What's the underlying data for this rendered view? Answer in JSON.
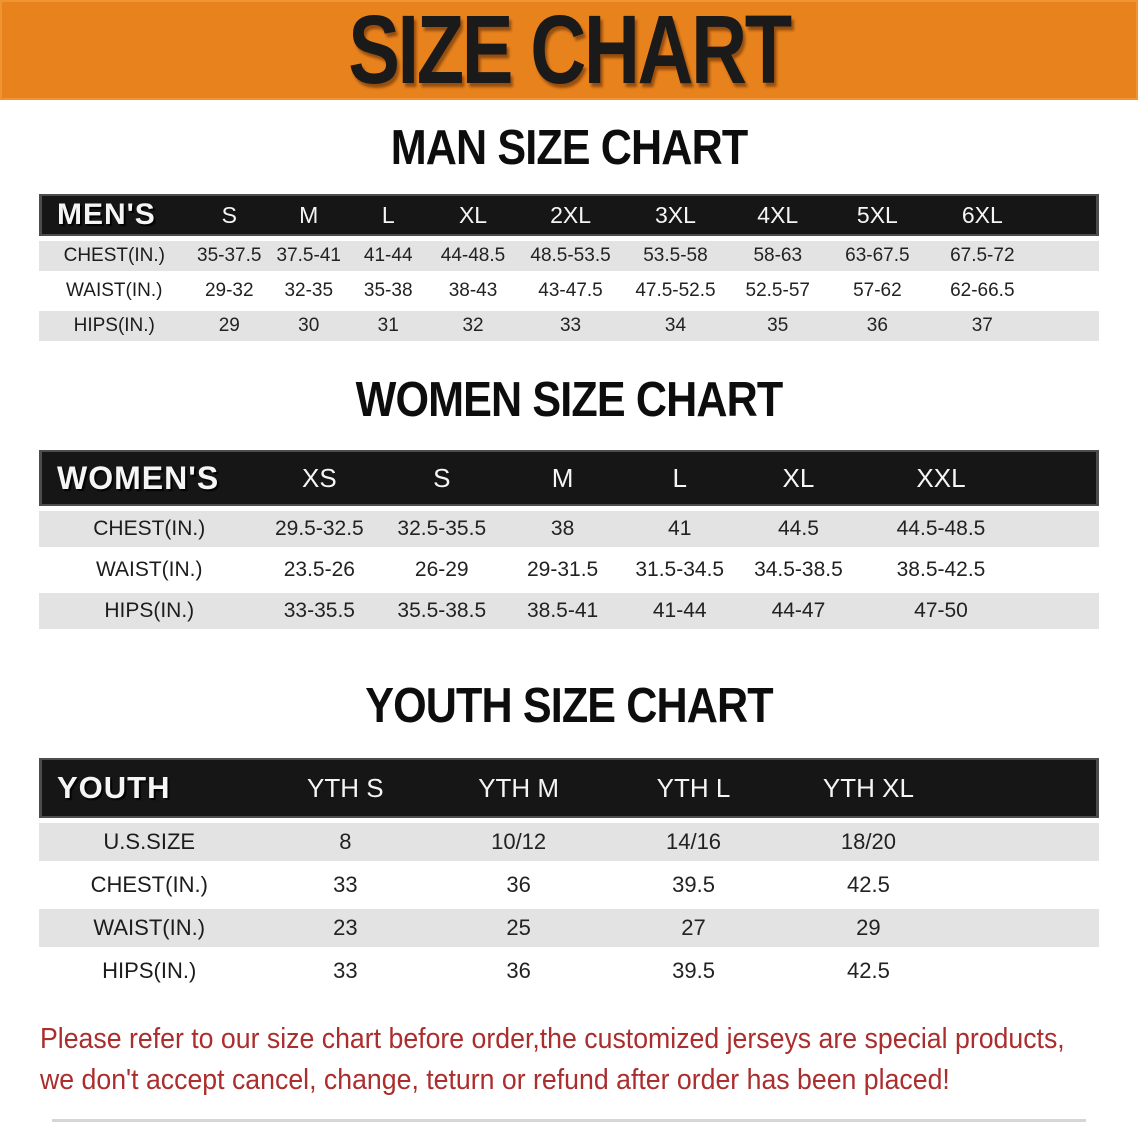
{
  "banner": {
    "title": "SIZE CHART"
  },
  "sections": [
    {
      "id": "men",
      "heading": "MAN SIZE CHART",
      "table": {
        "title": "MEN'S",
        "columns": [
          "S",
          "M",
          "L",
          "XL",
          "2XL",
          "3XL",
          "4XL",
          "5XL",
          "6XL"
        ],
        "rows": [
          {
            "label": "CHEST(IN.)",
            "values": [
              "35-37.5",
              "37.5-41",
              "41-44",
              "44-48.5",
              "48.5-53.5",
              "53.5-58",
              "58-63",
              "63-67.5",
              "67.5-72"
            ]
          },
          {
            "label": "WAIST(IN.)",
            "values": [
              "29-32",
              "32-35",
              "35-38",
              "38-43",
              "43-47.5",
              "47.5-52.5",
              "52.5-57",
              "57-62",
              "62-66.5"
            ]
          },
          {
            "label": "HIPS(IN.)",
            "values": [
              "29",
              "30",
              "31",
              "32",
              "33",
              "34",
              "35",
              "36",
              "37"
            ]
          }
        ]
      }
    },
    {
      "id": "women",
      "heading": "WOMEN SIZE CHART",
      "table": {
        "title": "WOMEN'S",
        "columns": [
          "XS",
          "S",
          "M",
          "L",
          "XL",
          "XXL"
        ],
        "rows": [
          {
            "label": "CHEST(IN.)",
            "values": [
              "29.5-32.5",
              "32.5-35.5",
              "38",
              "41",
              "44.5",
              "44.5-48.5"
            ]
          },
          {
            "label": "WAIST(IN.)",
            "values": [
              "23.5-26",
              "26-29",
              "29-31.5",
              "31.5-34.5",
              "34.5-38.5",
              "38.5-42.5"
            ]
          },
          {
            "label": "HIPS(IN.)",
            "values": [
              "33-35.5",
              "35.5-38.5",
              "38.5-41",
              "41-44",
              "44-47",
              "47-50"
            ]
          }
        ]
      }
    },
    {
      "id": "youth",
      "heading": "YOUTH SIZE CHART",
      "table": {
        "title": "YOUTH",
        "columns": [
          "YTH S",
          "YTH M",
          "YTH L",
          "YTH XL"
        ],
        "rows": [
          {
            "label": "U.S.SIZE",
            "values": [
              "8",
              "10/12",
              "14/16",
              "18/20"
            ]
          },
          {
            "label": "CHEST(IN.)",
            "values": [
              "33",
              "36",
              "39.5",
              "42.5"
            ]
          },
          {
            "label": "WAIST(IN.)",
            "values": [
              "23",
              "25",
              "27",
              "29"
            ]
          },
          {
            "label": "HIPS(IN.)",
            "values": [
              "33",
              "36",
              "39.5",
              "42.5"
            ]
          }
        ]
      }
    }
  ],
  "disclaimer": {
    "lines": [
      "Please refer to our size chart before order,the customized jerseys are special products,",
      "we don't accept cancel, change, teturn or refund after order has been placed!"
    ]
  },
  "colors": {
    "banner_bg": "#E8821C",
    "header_bg": "#161616",
    "row_alt_bg": "#E3E3E3",
    "disclaimer_text": "#AB2E2E"
  }
}
